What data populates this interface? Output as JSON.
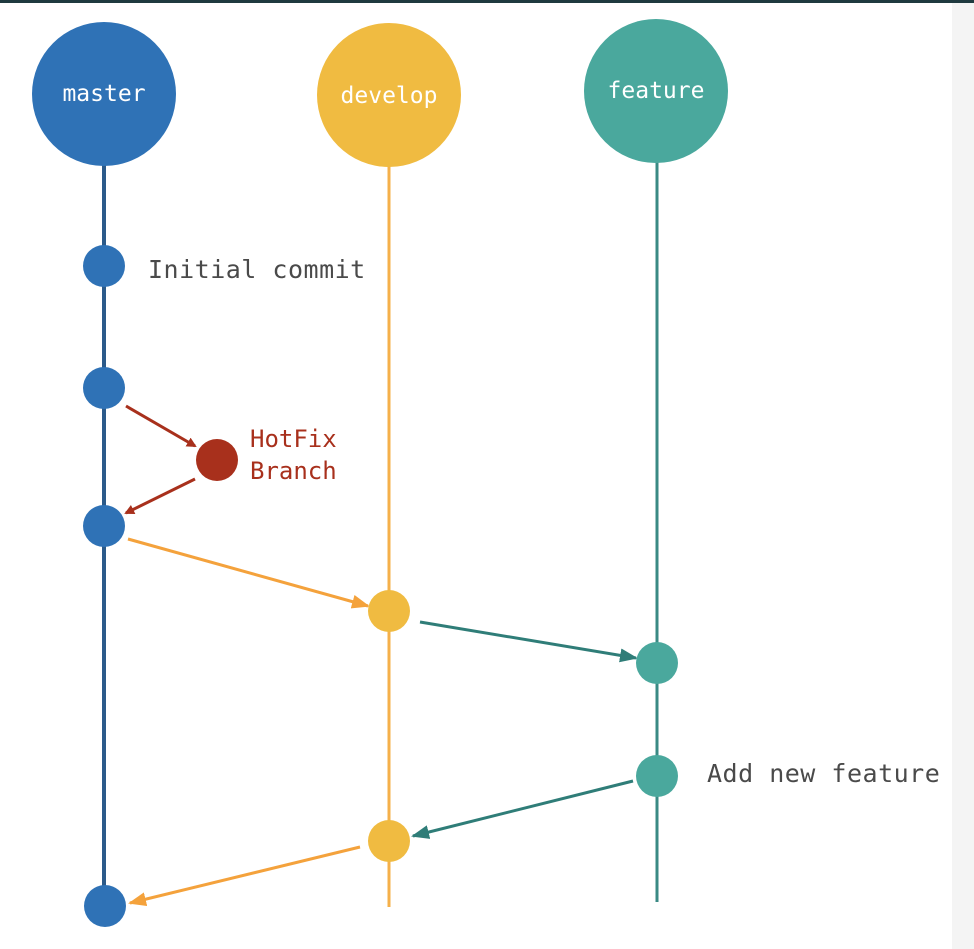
{
  "branches": {
    "master": {
      "label": "master",
      "color": "#2f72b6"
    },
    "develop": {
      "label": "develop",
      "color": "#f0bb41"
    },
    "feature": {
      "label": "feature",
      "color": "#4aa89d"
    }
  },
  "hotfix": {
    "line1": "HotFix",
    "line2": "Branch",
    "color": "#a8301c"
  },
  "notes": {
    "initial_commit": "Initial commit",
    "add_new_feature": "Add new feature"
  },
  "colors": {
    "master_line": "#2b5a8a",
    "develop_line": "#f5b04a",
    "feature_line": "#3a8a84",
    "hotfix_arrow": "#a8301c",
    "develop_arrow": "#f4a23c",
    "feature_arrow": "#2f7d78"
  }
}
